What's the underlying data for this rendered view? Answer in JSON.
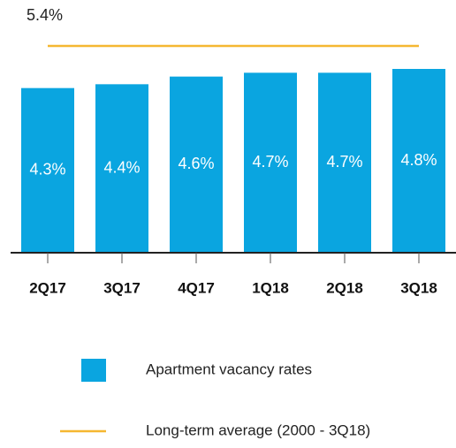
{
  "chart_data": {
    "type": "bar",
    "categories": [
      "2Q17",
      "3Q17",
      "4Q17",
      "1Q18",
      "2Q18",
      "3Q18"
    ],
    "series": [
      {
        "name": "Apartment vacancy rates",
        "color": "#0aa5e0",
        "values": [
          4.3,
          4.4,
          4.6,
          4.7,
          4.7,
          4.8
        ],
        "value_labels": [
          "4.3%",
          "4.4%",
          "4.6%",
          "4.7%",
          "4.7%",
          "4.8%"
        ]
      }
    ],
    "reference_line": {
      "name": "Long-term average (2000 - 3Q18)",
      "value": 5.4,
      "label": "5.4%",
      "color": "#f5b731"
    },
    "ylim": [
      0,
      6.6
    ]
  }
}
